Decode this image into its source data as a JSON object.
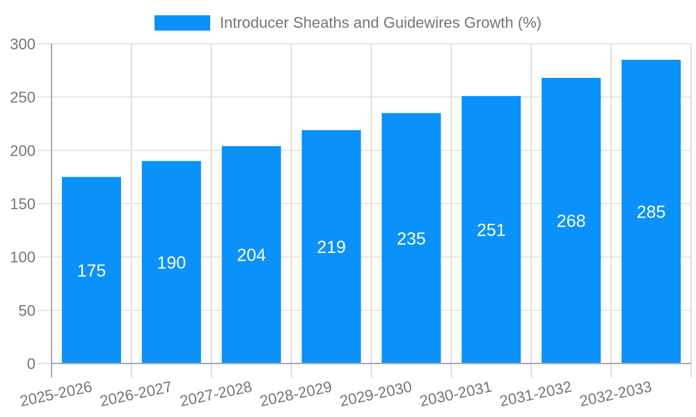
{
  "chart_data": {
    "type": "bar",
    "legend": {
      "label": "Introducer Sheaths and Guidewires Growth (%)",
      "position": "top"
    },
    "categories": [
      "2025-2026",
      "2026-2027",
      "2027-2028",
      "2028-2029",
      "2029-2030",
      "2030-2031",
      "2031-2032",
      "2032-2033"
    ],
    "series": [
      {
        "name": "Introducer Sheaths and Guidewires Growth (%)",
        "values": [
          175,
          190,
          204,
          219,
          235,
          251,
          268,
          285
        ]
      }
    ],
    "bar_value_labels": [
      "175",
      "190",
      "204",
      "219",
      "235",
      "251",
      "268",
      "285"
    ],
    "ylim": [
      0,
      300
    ],
    "yticks": [
      0,
      50,
      100,
      150,
      200,
      250,
      300
    ],
    "grid": true,
    "x_label_rotation_deg": -12,
    "colors": {
      "bar": "#0a91fa",
      "bar_label": "#ffffff",
      "axis_text": "#757575"
    }
  }
}
